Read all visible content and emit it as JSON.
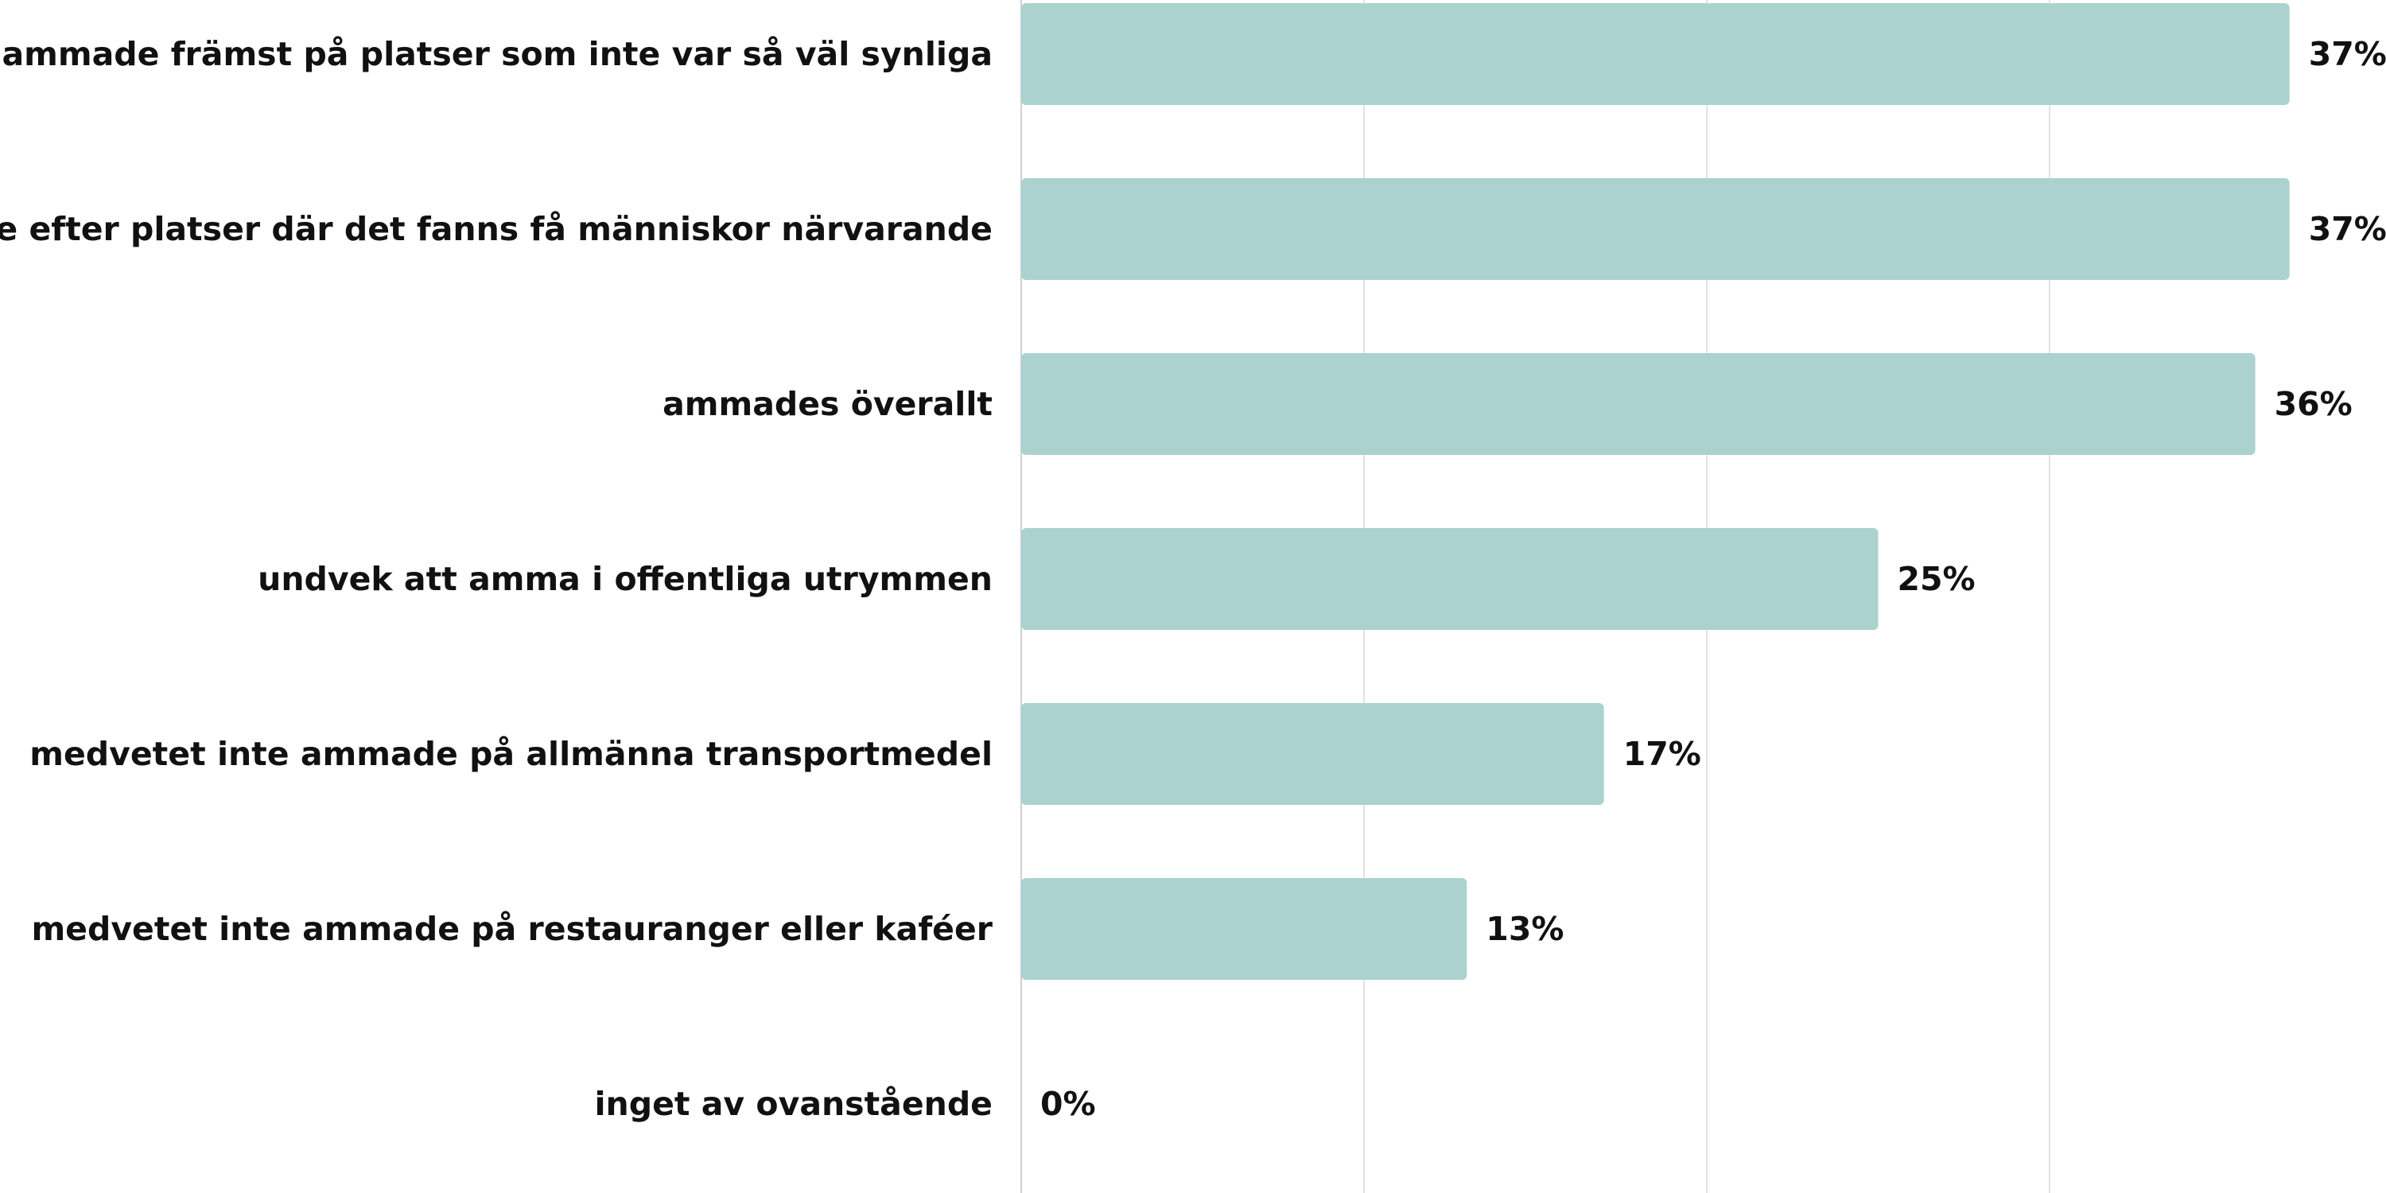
{
  "chart_data": {
    "type": "bar",
    "orientation": "horizontal",
    "categories": [
      "ammade främst på platser som inte var så väl synliga",
      "letade efter platser där det fanns få människor närvarande",
      "ammades överallt",
      "undvek att amma i offentliga utrymmen",
      "medvetet inte ammade på allmänna transportmedel",
      "medvetet inte ammade på restauranger eller kaféer",
      "inget av ovanstående"
    ],
    "values": [
      37,
      37,
      36,
      25,
      17,
      13,
      0
    ],
    "value_labels": [
      "37%",
      "37%",
      "36%",
      "25%",
      "17%",
      "13%",
      "0%"
    ],
    "unit": "%",
    "xlim": [
      0,
      40
    ],
    "grid": true,
    "legend": "none",
    "colors": {
      "bar": "#abd2cf",
      "grid": "#e3e3e3",
      "axis": "#cfcfcf",
      "text": "#111111"
    }
  }
}
